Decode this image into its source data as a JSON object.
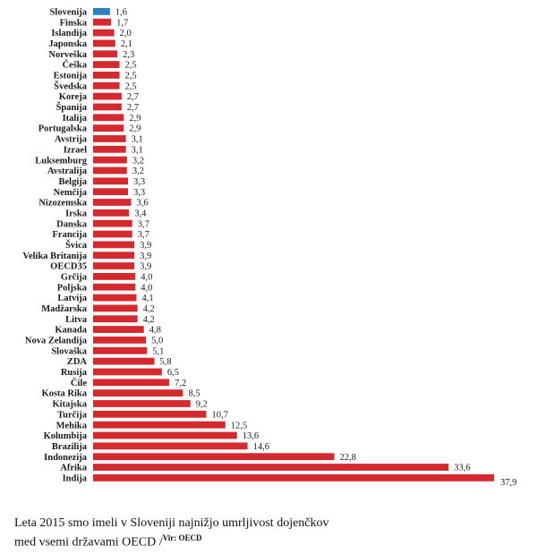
{
  "chart_data": {
    "type": "bar",
    "orientation": "horizontal",
    "categories": [
      "Slovenija",
      "Finska",
      "Islandija",
      "Japonska",
      "Norveška",
      "Češka",
      "Estonija",
      "Švedska",
      "Koreja",
      "Španija",
      "Italija",
      "Portugalska",
      "Avstrija",
      "Izrael",
      "Luksemburg",
      "Avstralija",
      "Belgija",
      "Nemčija",
      "Nizozemska",
      "Irska",
      "Danska",
      "Francija",
      "Švica",
      "Velika Britanija",
      "OECD35",
      "Grčija",
      "Poljska",
      "Latvija",
      "Madžarska",
      "Litva",
      "Kanada",
      "Nova Zelandija",
      "Slovaška",
      "ZDA",
      "Rusija",
      "Čile",
      "Kosta Rika",
      "Kitajska",
      "Turčija",
      "Mehika",
      "Kolumbija",
      "Brazilija",
      "Indonezija",
      "Afrika",
      "Indija"
    ],
    "values": [
      1.6,
      1.7,
      2.0,
      2.1,
      2.3,
      2.5,
      2.5,
      2.5,
      2.7,
      2.7,
      2.9,
      2.9,
      3.1,
      3.1,
      3.2,
      3.2,
      3.3,
      3.3,
      3.6,
      3.4,
      3.7,
      3.7,
      3.9,
      3.9,
      3.9,
      4.0,
      4.0,
      4.1,
      4.2,
      4.2,
      4.8,
      5.0,
      5.1,
      5.8,
      6.5,
      7.2,
      8.5,
      9.2,
      10.7,
      12.5,
      13.6,
      14.6,
      22.8,
      33.6,
      37.9
    ],
    "value_labels": [
      "1,6",
      "1,7",
      "2,0",
      "2,1",
      "2,3",
      "2,5",
      "2,5",
      "2,5",
      "2,7",
      "2,7",
      "2,9",
      "2,9",
      "3,1",
      "3,1",
      "3,2",
      "3,2",
      "3,3",
      "3,3",
      "3,6",
      "3,4",
      "3,7",
      "3,7",
      "3,9",
      "3,9",
      "3,9",
      "4,0",
      "4,0",
      "4,1",
      "4,2",
      "4,2",
      "4,8",
      "5,0",
      "5,1",
      "5,8",
      "6,5",
      "7,2",
      "8,5",
      "9,2",
      "10,7",
      "12,5",
      "13,6",
      "14,6",
      "22,8",
      "33,6",
      "37,9"
    ],
    "highlight_index": 0,
    "colors": {
      "highlight": "#2f7fc1",
      "default": "#d42a2f"
    },
    "xlim": [
      0,
      37.9
    ],
    "grid": false,
    "legend": "none"
  },
  "caption": {
    "line1": "Leta 2015 smo imeli v Sloveniji najnižjo umrljivost dojenčkov",
    "line2": "med vsemi državami OECD /",
    "source": "Vir: OECD"
  }
}
